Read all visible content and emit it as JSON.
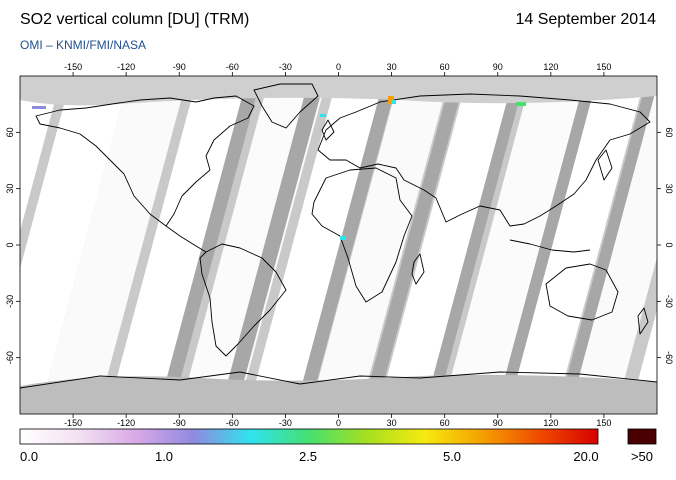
{
  "header": {
    "title": "SO2 vertical column [DU] (TRM)",
    "date": "14 September 2014",
    "credit": "OMI  –  KNMI/FMI/NASA"
  },
  "map": {
    "projection": "equirectangular",
    "lon_range": [
      -180,
      180
    ],
    "lat_range": [
      -90,
      90
    ],
    "lon_ticks": [
      -150,
      -120,
      -90,
      -60,
      -30,
      0,
      30,
      60,
      90,
      120,
      150
    ],
    "lat_ticks": [
      60,
      30,
      0,
      -30,
      -60
    ],
    "lon_tick_labels": [
      "-150",
      "-120",
      "-90",
      "-60",
      "-30",
      "0",
      "30",
      "60",
      "90",
      "120",
      "150"
    ],
    "lat_tick_labels": [
      "60",
      "30",
      "0",
      "-30",
      "-60"
    ],
    "no_data_color": "#c9c9c9",
    "dark_swath_color": "#a7a7a7",
    "coastline_color": "#000000"
  },
  "colorbar": {
    "labels": [
      "0.0",
      "1.0",
      "2.5",
      "5.0",
      "20.0",
      ">50"
    ],
    "overflow_color": "#4a0000",
    "stops": [
      "#ffffff",
      "#f3e2f3",
      "#d9a9e6",
      "#8f8ae0",
      "#2fe3ee",
      "#45e070",
      "#a6e020",
      "#f6ea10",
      "#f5a000",
      "#ef4a00",
      "#d80000"
    ]
  }
}
